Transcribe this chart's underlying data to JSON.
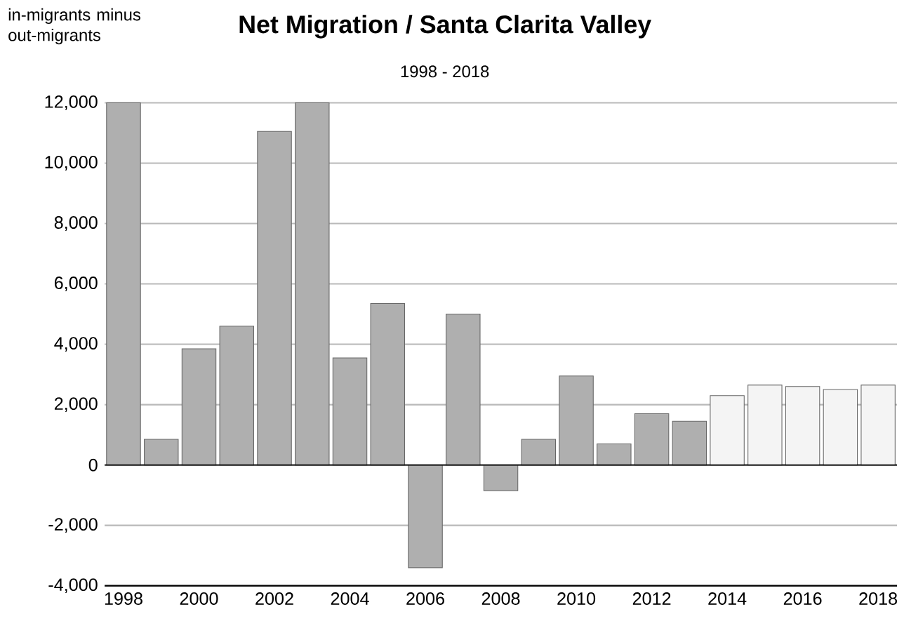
{
  "chart_data": {
    "type": "bar",
    "title": "Net Migration / Santa Clarita Valley",
    "subtitle": "1998 - 2018",
    "ylabel": "in-migrants minus out-migrants",
    "categories": [
      "1998",
      null,
      "2000",
      null,
      "2002",
      null,
      "2004",
      null,
      "2006",
      null,
      "2008",
      null,
      "2010",
      null,
      "2012",
      null,
      "2014",
      null,
      "2016",
      null,
      "2018"
    ],
    "values": [
      12000,
      850,
      3850,
      4600,
      11050,
      12000,
      3550,
      5350,
      -3400,
      5000,
      -850,
      850,
      2950,
      700,
      1700,
      1450,
      2300,
      2650,
      2600,
      2500,
      2650
    ],
    "colors": [
      "#afafaf",
      "#afafaf",
      "#afafaf",
      "#afafaf",
      "#afafaf",
      "#afafaf",
      "#afafaf",
      "#afafaf",
      "#afafaf",
      "#afafaf",
      "#afafaf",
      "#afafaf",
      "#afafaf",
      "#afafaf",
      "#afafaf",
      "#afafaf",
      "#f4f4f4",
      "#f4f4f4",
      "#f4f4f4",
      "#f4f4f4",
      "#f4f4f4"
    ],
    "ylim": [
      -4000,
      12000
    ],
    "yticks": [
      {
        "value": -4000,
        "label": "-4,000"
      },
      {
        "value": -2000,
        "label": "-2,000"
      },
      0,
      {
        "value": 2000,
        "label": "2,000"
      },
      {
        "value": 4000,
        "label": "4,000"
      },
      {
        "value": 6000,
        "label": "6,000"
      },
      {
        "value": 8000,
        "label": "8,000"
      },
      {
        "value": 10000,
        "label": "10,000"
      },
      {
        "value": 12000,
        "label": "12,000"
      }
    ],
    "grid": "y"
  }
}
